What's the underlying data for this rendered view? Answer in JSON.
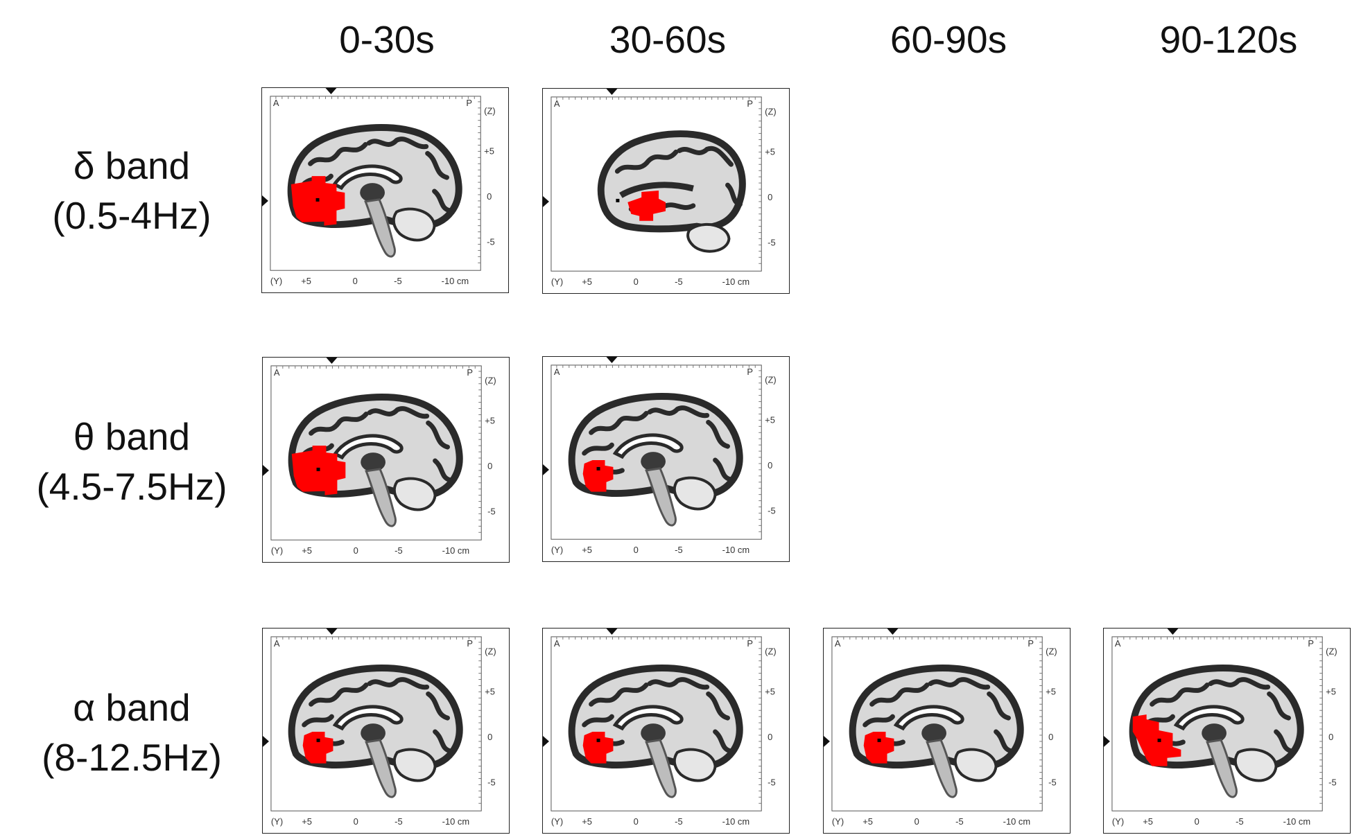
{
  "columns": [
    "0-30s",
    "30-60s",
    "60-90s",
    "90-120s"
  ],
  "rows": [
    {
      "band": "δ band",
      "range": "(0.5-4Hz)"
    },
    {
      "band": "θ band",
      "range": "(4.5-7.5Hz)"
    },
    {
      "band": "α band",
      "range": "(8-12.5Hz)"
    }
  ],
  "panel_labels": {
    "anterior": "A",
    "posterior": "P",
    "z_axis": "(Z)",
    "y_axis": "(Y)",
    "z_ticks": [
      "+5",
      "0",
      "-5"
    ],
    "y_ticks": [
      "+5",
      "0",
      "-5",
      "-10 cm"
    ]
  },
  "panels": [
    {
      "row": 0,
      "col": 0,
      "view": "medial",
      "activation": "frontal-large"
    },
    {
      "row": 0,
      "col": 1,
      "view": "lateral",
      "activation": "temporal-small"
    },
    {
      "row": 1,
      "col": 0,
      "view": "medial",
      "activation": "frontal-large"
    },
    {
      "row": 1,
      "col": 1,
      "view": "medial",
      "activation": "frontal-small"
    },
    {
      "row": 2,
      "col": 0,
      "view": "medial",
      "activation": "frontal-small"
    },
    {
      "row": 2,
      "col": 1,
      "view": "medial",
      "activation": "frontal-small"
    },
    {
      "row": 2,
      "col": 2,
      "view": "medial",
      "activation": "frontal-small"
    },
    {
      "row": 2,
      "col": 3,
      "view": "medial",
      "activation": "frontal-medium"
    }
  ],
  "colors": {
    "activation": "#ff0000",
    "brain_dark": "#2a2a2a",
    "brain_light": "#d8d8d8"
  }
}
